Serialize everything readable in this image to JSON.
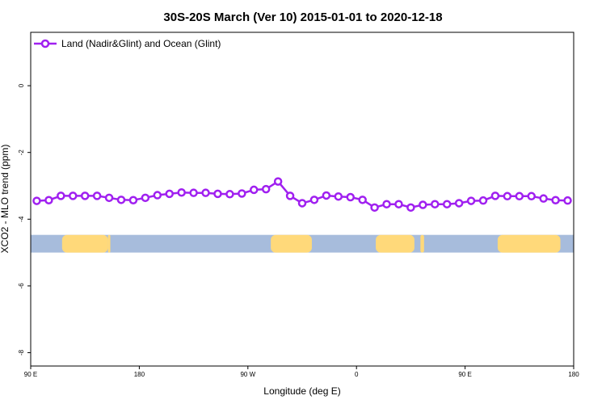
{
  "chart_data": {
    "type": "line",
    "title": "30S-20S March (Ver 10)   2015-01-01 to 2020-12-18",
    "xlabel": "Longitude (deg E)",
    "ylabel": "XCO2 - MLO trend (ppm)",
    "x_ticks": [
      {
        "value": 90,
        "label": "90 E"
      },
      {
        "value": 180,
        "label": "180"
      },
      {
        "value": 270,
        "label": "90 W"
      },
      {
        "value": 360,
        "label": "0"
      },
      {
        "value": 450,
        "label": "90 E"
      },
      {
        "value": 540,
        "label": "180"
      }
    ],
    "y_ticks": [
      0,
      -2,
      -4,
      -6,
      -8
    ],
    "xlim": [
      90,
      540
    ],
    "ylim": [
      -8.4,
      1.6
    ],
    "legend_position": "top-left",
    "grid": false,
    "series": [
      {
        "name": "Land (Nadir&Glint) and Ocean (Glint)",
        "color": "#a020f0",
        "x": [
          95,
          105,
          115,
          125,
          135,
          145,
          155,
          165,
          175,
          185,
          195,
          205,
          215,
          225,
          235,
          245,
          255,
          265,
          275,
          285,
          295,
          305,
          315,
          325,
          335,
          345,
          355,
          365,
          375,
          385,
          395,
          405,
          415,
          425,
          435,
          445,
          455,
          465,
          475,
          485,
          495,
          505,
          515,
          525,
          535
        ],
        "y": [
          -3.45,
          -3.43,
          -3.3,
          -3.3,
          -3.3,
          -3.3,
          -3.36,
          -3.42,
          -3.43,
          -3.36,
          -3.28,
          -3.24,
          -3.2,
          -3.21,
          -3.21,
          -3.24,
          -3.25,
          -3.23,
          -3.12,
          -3.1,
          -2.87,
          -3.3,
          -3.52,
          -3.42,
          -3.29,
          -3.32,
          -3.34,
          -3.42,
          -3.65,
          -3.55,
          -3.55,
          -3.65,
          -3.57,
          -3.55,
          -3.55,
          -3.52,
          -3.45,
          -3.44,
          -3.3,
          -3.31,
          -3.31,
          -3.31,
          -3.38,
          -3.43,
          -3.44
        ]
      }
    ],
    "surface_band": {
      "y_range": [
        -4.47,
        -5.0
      ],
      "ocean_color": "#a7bcdc",
      "land_color": "#ffd97a",
      "land_segments": [
        [
          116,
          154
        ],
        [
          154,
          156
        ],
        [
          289,
          323
        ],
        [
          376,
          408
        ],
        [
          413,
          416
        ],
        [
          477,
          529
        ],
        [
          544,
          546
        ]
      ]
    }
  }
}
